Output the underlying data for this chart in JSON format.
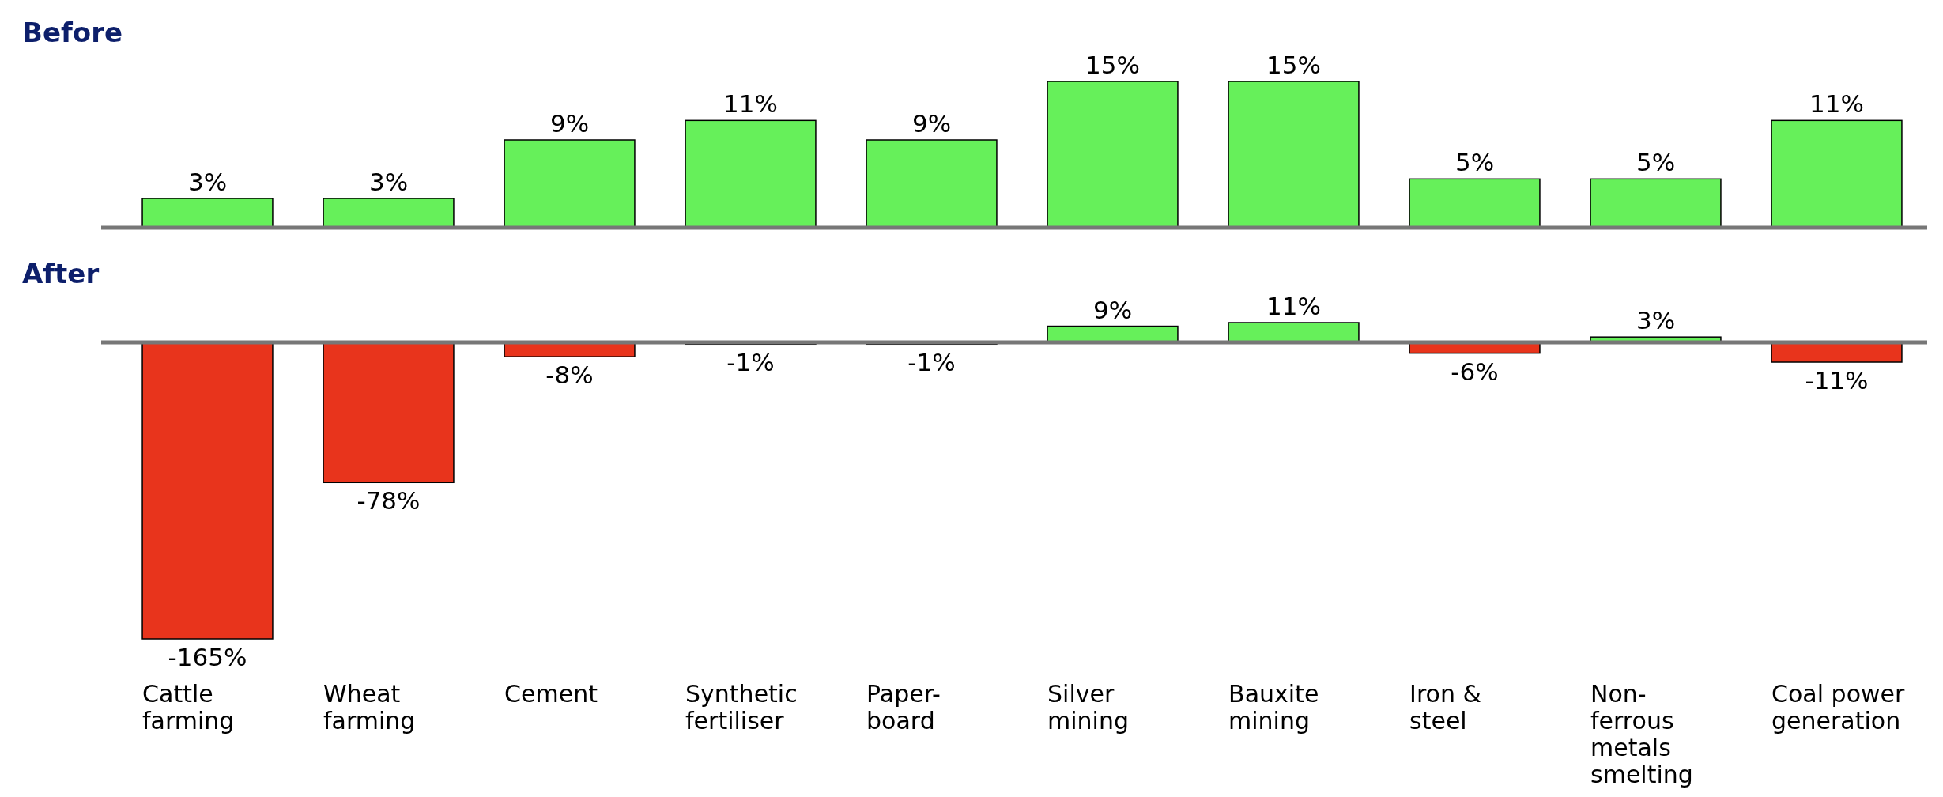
{
  "chart_data": [
    {
      "type": "bar",
      "title": "Before",
      "categories": [
        null,
        null,
        null,
        null,
        null,
        null,
        null,
        null,
        null,
        null
      ],
      "values": [
        3,
        3,
        9,
        11,
        9,
        15,
        15,
        5,
        5,
        11
      ],
      "value_labels": [
        "3%",
        "3%",
        "9%",
        "11%",
        "9%",
        "15%",
        "15%",
        "5%",
        "5%",
        "11%"
      ],
      "colors": [
        "#66f05a",
        "#66f05a",
        "#66f05a",
        "#66f05a",
        "#66f05a",
        "#66f05a",
        "#66f05a",
        "#66f05a",
        "#66f05a",
        "#66f05a"
      ],
      "tick_labels": "x"
    },
    {
      "type": "bar",
      "title": "After",
      "categories": [
        "Cattle farming",
        "Wheat farming",
        "Cement",
        "Synthetic fertiliser",
        "Paper-board",
        "Silver mining",
        "Bauxite mining",
        "Iron & steel",
        "Non-ferrous metals smelting",
        "Coal power generation"
      ],
      "values": [
        -165,
        -78,
        -8,
        -1,
        -1,
        9,
        11,
        -6,
        3,
        -11
      ],
      "value_labels": [
        "-165%",
        "-78%",
        "-8%",
        "-1%",
        "-1%",
        "9%",
        "11%",
        "-6%",
        "3%",
        "-11%"
      ],
      "colors": [
        "#e8341c",
        "#e8341c",
        "#e8341c",
        "#e8341c",
        "#e8341c",
        "#66f05a",
        "#66f05a",
        "#e8341c",
        "#66f05a",
        "#e8341c"
      ],
      "tick_labels": "x"
    }
  ]
}
